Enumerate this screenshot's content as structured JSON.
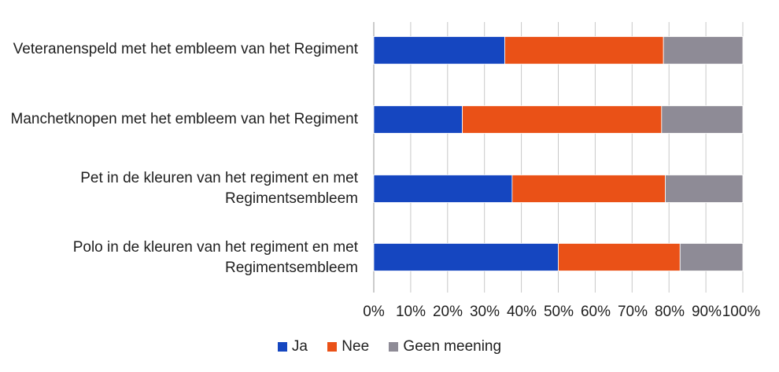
{
  "chart_data": {
    "type": "bar",
    "orientation": "horizontal",
    "stacked": "percent",
    "categories": [
      "Veteranenspeld met het embleem van het Regiment",
      "Manchetknopen met het embleem van het Regiment",
      "Pet in de kleuren van het regiment en met Regimentsembleem",
      "Polo in de kleuren van het regiment en met Regimentsembleem"
    ],
    "series": [
      {
        "name": "Ja",
        "color": "#1546c0",
        "values": [
          35.5,
          24,
          37.5,
          50
        ]
      },
      {
        "name": "Nee",
        "color": "#ea5117",
        "values": [
          43,
          54,
          41.5,
          33
        ]
      },
      {
        "name": "Geen meening",
        "color": "#8e8b96",
        "values": [
          21.5,
          22,
          21,
          17
        ]
      }
    ],
    "xlim": [
      0,
      100
    ],
    "xticks": [
      "0%",
      "10%",
      "20%",
      "30%",
      "40%",
      "50%",
      "60%",
      "70%",
      "80%",
      "90%",
      "100%"
    ],
    "grid": true,
    "legend": "bottom"
  }
}
